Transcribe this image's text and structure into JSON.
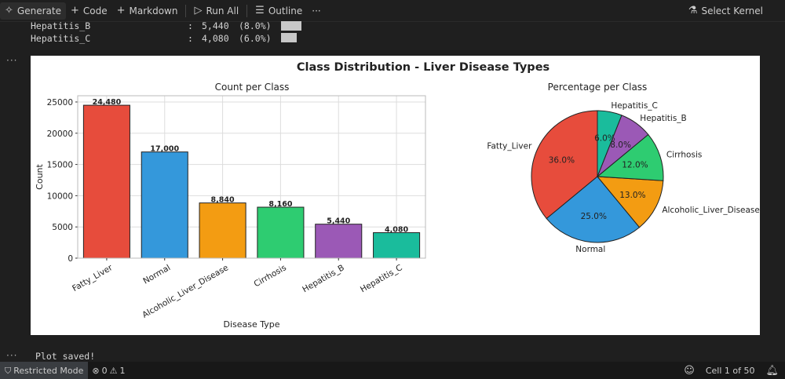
{
  "toolbar": {
    "generate": "Generate",
    "code": "Code",
    "markdown": "Markdown",
    "run_all": "Run All",
    "outline": "Outline",
    "more": "···",
    "select_kernel": "Select Kernel"
  },
  "output_top": {
    "lines": [
      {
        "label": "Hepatitis_B",
        "sep": ":",
        "value": "5,440",
        "pct": "(8.0%)"
      },
      {
        "label": "Hepatitis_C",
        "sep": ":",
        "value": "4,080",
        "pct": "(6.0%)"
      }
    ]
  },
  "cell": {
    "dots": "···"
  },
  "figure": {
    "suptitle": "Class Distribution - Liver Disease Types",
    "bar_title": "Count per Class",
    "pie_title": "Percentage per Class"
  },
  "chart_data": [
    {
      "type": "bar",
      "title": "Count per Class",
      "xlabel": "Disease Type",
      "ylabel": "Count",
      "categories": [
        "Fatty_Liver",
        "Normal",
        "Alcoholic_Liver_Disease",
        "Cirrhosis",
        "Hepatitis_B",
        "Hepatitis_C"
      ],
      "values": [
        24480,
        17000,
        8840,
        8160,
        5440,
        4080
      ],
      "value_labels": [
        "24,480",
        "17,000",
        "8,840",
        "8,160",
        "5,440",
        "4,080"
      ],
      "colors": [
        "#e74c3c",
        "#3498db",
        "#f39c12",
        "#2ecc71",
        "#9b59b6",
        "#1abc9c"
      ],
      "ylim": [
        0,
        26000
      ],
      "yticks": [
        0,
        5000,
        10000,
        15000,
        20000,
        25000
      ],
      "grid": true
    },
    {
      "type": "pie",
      "title": "Percentage per Class",
      "categories": [
        "Fatty_Liver",
        "Normal",
        "Alcoholic_Liver_Disease",
        "Cirrhosis",
        "Hepatitis_B",
        "Hepatitis_C"
      ],
      "values": [
        36.0,
        25.0,
        13.0,
        12.0,
        8.0,
        6.0
      ],
      "pct_labels": [
        "36.0%",
        "25.0%",
        "13.0%",
        "12.0%",
        "8.0%",
        "6.0%"
      ],
      "colors": [
        "#e74c3c",
        "#3498db",
        "#f39c12",
        "#2ecc71",
        "#9b59b6",
        "#1abc9c"
      ],
      "start_angle_deg": 90
    }
  ],
  "output_bottom": {
    "text": "Plot saved!"
  },
  "statusbar": {
    "restricted": "Restricted Mode",
    "errors": "0",
    "warnings": "1",
    "cell_position": "Cell 1 of 50"
  }
}
